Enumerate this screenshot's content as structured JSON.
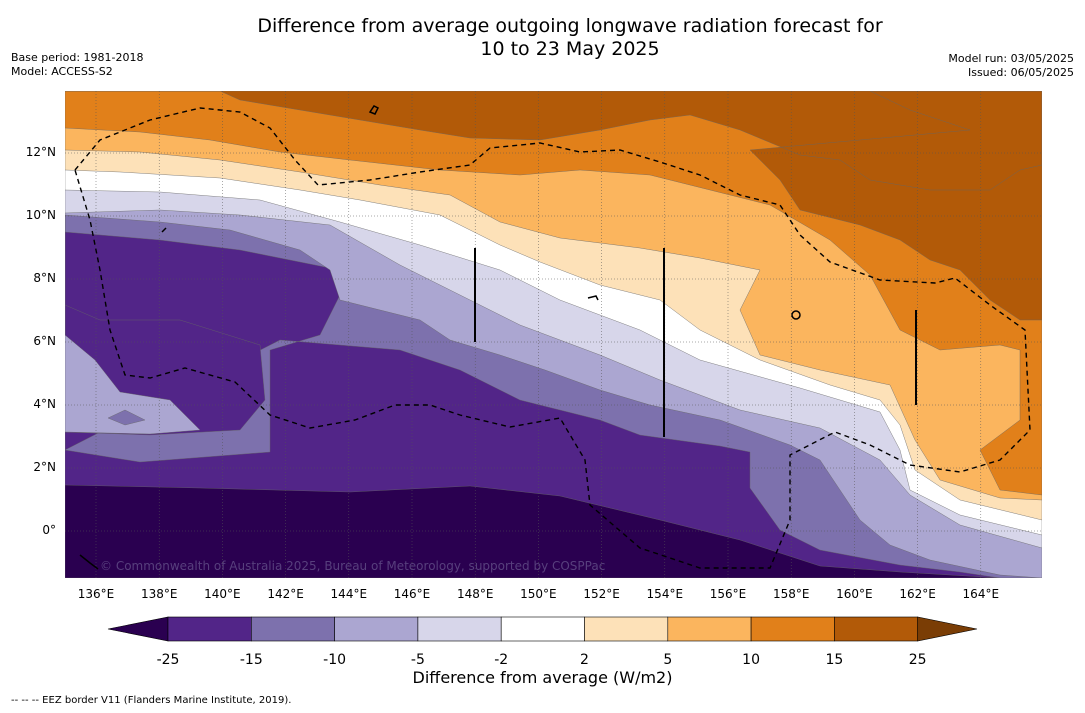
{
  "title_line1": "Difference from average outgoing longwave radiation forecast for",
  "title_line2": "10 to 23 May 2025",
  "base_period": "Base period: 1981-2018",
  "model": "Model: ACCESS-S2",
  "model_run": "Model run: 03/05/2025",
  "issued": "Issued: 06/05/2025",
  "watermark": "© Commonwealth of Australia 2025, Bureau of Meteorology, supported by COSPPac",
  "x_ticks": [
    "136°E",
    "138°E",
    "140°E",
    "142°E",
    "144°E",
    "146°E",
    "148°E",
    "150°E",
    "152°E",
    "154°E",
    "156°E",
    "158°E",
    "160°E",
    "162°E",
    "164°E"
  ],
  "y_ticks": [
    "12°N",
    "10°N",
    "8°N",
    "6°N",
    "4°N",
    "2°N",
    "0°"
  ],
  "colorbar": {
    "ticks": [
      "-25",
      "-15",
      "-10",
      "-5",
      "-2",
      "2",
      "5",
      "10",
      "15",
      "25"
    ],
    "colors": [
      "#2a0050",
      "#522588",
      "#7d71ad",
      "#aba6d1",
      "#d7d6ea",
      "#ffffff",
      "#fde1b8",
      "#fbb55e",
      "#e1801a",
      "#b25a08",
      "#7a3d05"
    ],
    "label": "Difference from average (W/m2)"
  },
  "footer": "--  --  -- EEZ border V11 (Flanders Marine Institute, 2019)."
}
